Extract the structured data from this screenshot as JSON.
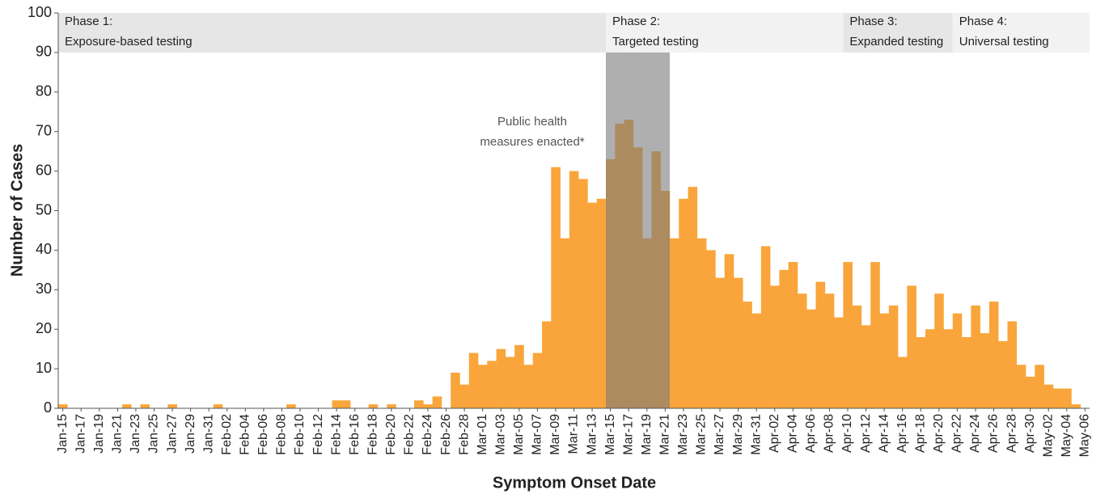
{
  "chart_data": {
    "type": "bar",
    "x_label": "Symptom Onset Date",
    "y_label": "Number of Cases",
    "categories": [
      "Jan-15",
      null,
      "Jan-17",
      null,
      "Jan-19",
      null,
      "Jan-21",
      null,
      "Jan-23",
      null,
      "Jan-25",
      null,
      "Jan-27",
      null,
      "Jan-29",
      null,
      "Jan-31",
      null,
      "Feb-02",
      null,
      "Feb-04",
      null,
      "Feb-06",
      null,
      "Feb-08",
      null,
      "Feb-10",
      null,
      "Feb-12",
      null,
      "Feb-14",
      null,
      "Feb-16",
      null,
      "Feb-18",
      null,
      "Feb-20",
      null,
      "Feb-22",
      null,
      "Feb-24",
      null,
      "Feb-26",
      null,
      "Feb-28",
      null,
      "Mar-01",
      null,
      "Mar-03",
      null,
      "Mar-05",
      null,
      "Mar-07",
      null,
      "Mar-09",
      null,
      "Mar-11",
      null,
      "Mar-13",
      null,
      "Mar-15",
      null,
      "Mar-17",
      null,
      "Mar-19",
      null,
      "Mar-21",
      null,
      "Mar-23",
      null,
      "Mar-25",
      null,
      "Mar-27",
      null,
      "Mar-29",
      null,
      "Mar-31",
      null,
      "Apr-02",
      null,
      "Apr-04",
      null,
      "Apr-06",
      null,
      "Apr-08",
      null,
      "Apr-10",
      null,
      "Apr-12",
      null,
      "Apr-14",
      null,
      "Apr-16",
      null,
      "Apr-18",
      null,
      "Apr-20",
      null,
      "Apr-22",
      null,
      "Apr-24",
      null,
      "Apr-26",
      null,
      "Apr-28",
      null,
      "Apr-30",
      null,
      "May-02",
      null,
      "May-04",
      null,
      "May-06"
    ],
    "values": [
      1,
      0,
      0,
      0,
      0,
      0,
      0,
      1,
      0,
      1,
      0,
      0,
      1,
      0,
      0,
      0,
      0,
      1,
      0,
      0,
      0,
      0,
      0,
      0,
      0,
      1,
      0,
      0,
      0,
      0,
      2,
      2,
      0,
      0,
      1,
      0,
      1,
      0,
      0,
      2,
      1,
      3,
      0,
      9,
      6,
      14,
      11,
      12,
      15,
      13,
      16,
      11,
      14,
      22,
      61,
      43,
      60,
      58,
      52,
      53,
      63,
      72,
      73,
      66,
      43,
      65,
      55,
      43,
      53,
      56,
      43,
      40,
      33,
      39,
      33,
      27,
      24,
      41,
      31,
      35,
      37,
      29,
      25,
      32,
      29,
      23,
      37,
      26,
      21,
      37,
      24,
      26,
      13,
      31,
      18,
      20,
      29,
      20,
      24,
      18,
      26,
      19,
      27,
      17,
      22,
      11,
      8,
      11,
      6,
      5,
      5,
      1,
      0
    ],
    "color": "#f9a53b",
    "ylim": [
      0,
      100
    ],
    "yticks": [
      0,
      10,
      20,
      30,
      40,
      50,
      60,
      70,
      80,
      90,
      100
    ],
    "phases": [
      {
        "title": "Phase 1:",
        "subtitle": "Exposure-based testing",
        "from": "Jan-15",
        "color": "#e6e6e6"
      },
      {
        "title": "Phase 2:",
        "subtitle": "Targeted testing",
        "from": "Mar-15",
        "color": "#f2f2f2"
      },
      {
        "title": "Phase 3:",
        "subtitle": "Expanded testing",
        "from": "Apr-10",
        "color": "#e6e6e6"
      },
      {
        "title": "Phase 4:",
        "subtitle": "Universal testing",
        "from": "Apr-22",
        "color": "#f2f2f2"
      }
    ],
    "shaded_period": {
      "from": "Mar-15",
      "to": "Mar-21",
      "color": "#7a7a7a",
      "annotation": [
        "Public health",
        "measures enacted*"
      ]
    }
  }
}
